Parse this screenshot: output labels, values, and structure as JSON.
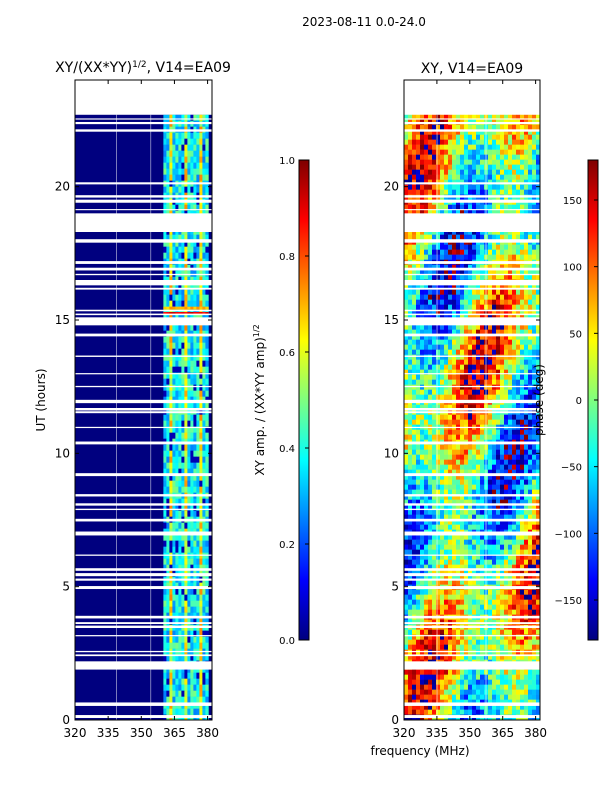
{
  "suptitle": "2023-08-11 0.0-24.0",
  "colors": {
    "jet": [
      "#00007f",
      "#0000ff",
      "#007fff",
      "#00ffff",
      "#7fff7f",
      "#ffff00",
      "#ff7f00",
      "#ff0000",
      "#7f0000"
    ]
  },
  "chart_data": [
    {
      "type": "heatmap",
      "title": "XY/(XX*YY)",
      "title_sup": "1/2",
      "title_suffix": ", V14=EA09",
      "xlabel": "",
      "ylabel": "UT (hours)",
      "xlim": [
        320,
        382
      ],
      "ylim": [
        0,
        24
      ],
      "xticks": [
        "320",
        "335",
        "350",
        "365",
        "380"
      ],
      "yticks": [
        "0",
        "5",
        "10",
        "15",
        "20"
      ],
      "data_coverage_hours": [
        0.0,
        22.7
      ],
      "active_band_mhz": [
        360,
        380
      ],
      "colorbar": {
        "label": "XY amp. / (XX*YY amp)",
        "label_sup": "1/2",
        "range": [
          0.0,
          1.0
        ],
        "ticks": [
          "0.0",
          "0.2",
          "0.4",
          "0.6",
          "0.8",
          "1.0"
        ]
      }
    },
    {
      "type": "heatmap",
      "title": "XY, V14=EA09",
      "xlabel": "frequency (MHz)",
      "ylabel": "",
      "xlim": [
        320,
        382
      ],
      "ylim": [
        0,
        24
      ],
      "xticks": [
        "320",
        "335",
        "350",
        "365",
        "380"
      ],
      "yticks": [
        "0",
        "5",
        "10",
        "15",
        "20"
      ],
      "data_coverage_hours": [
        0.0,
        22.7
      ],
      "colorbar": {
        "label": "phase (deg)",
        "range": [
          -180,
          180
        ],
        "ticks": [
          "−150",
          "−100",
          "−50",
          "0",
          "50",
          "100",
          "150"
        ]
      }
    }
  ]
}
